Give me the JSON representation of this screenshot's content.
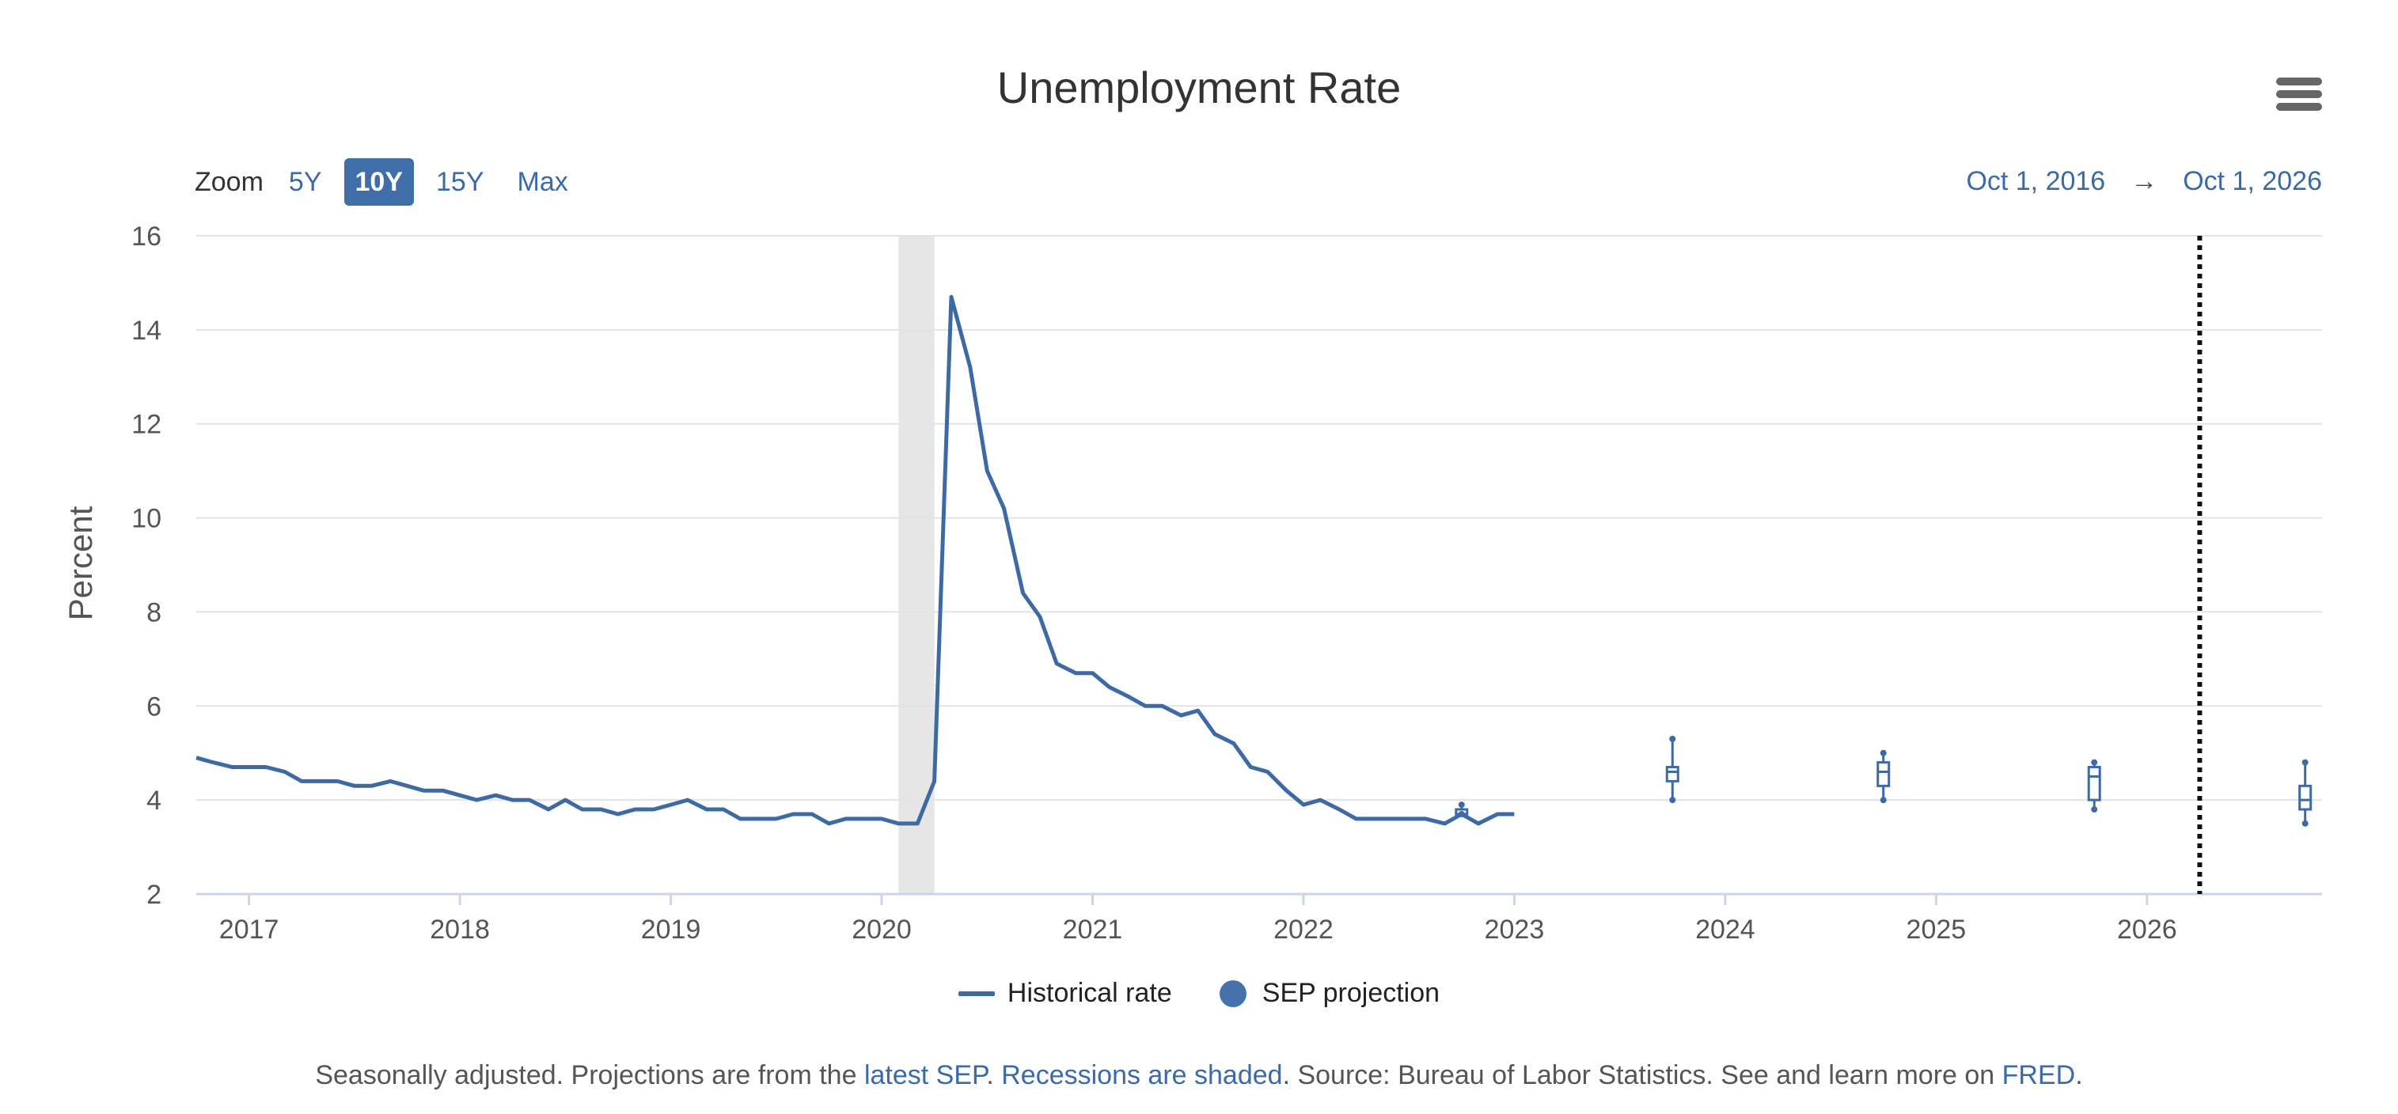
{
  "title": "Unemployment Rate",
  "zoom": {
    "label": "Zoom",
    "options": [
      "5Y",
      "10Y",
      "15Y",
      "Max"
    ],
    "active": "10Y"
  },
  "range": {
    "from": "Oct 1, 2016",
    "arrow": "→",
    "to": "Oct 1, 2026"
  },
  "legend": {
    "historical": "Historical rate",
    "projection": "SEP projection"
  },
  "footnote": {
    "part1": "Seasonally adjusted. Projections are from the ",
    "link1": "latest SEP",
    "part2": ". ",
    "link2": "Recessions are shaded",
    "part3": ". Source: Bureau of Labor Statistics. See and learn more on ",
    "link3": "FRED",
    "part4": "."
  },
  "colors": {
    "line": "#3d6aa4",
    "recession": "#e6e6e6",
    "grid": "#e3e3e3",
    "axis": "#c9d6e8"
  },
  "chart_data": {
    "type": "line",
    "title": "Unemployment Rate",
    "ylabel": "Percent",
    "xlabel": "",
    "ylim": [
      2,
      16
    ],
    "xlim": [
      2016.75,
      2026.83
    ],
    "yticks": [
      2,
      4,
      6,
      8,
      10,
      12,
      14,
      16
    ],
    "xticks": [
      2017,
      2018,
      2019,
      2020,
      2021,
      2022,
      2023,
      2024,
      2025,
      2026
    ],
    "grid": true,
    "legend_position": "bottom-center",
    "recessions": [
      {
        "start": 2020.08,
        "end": 2020.25
      }
    ],
    "reference_line_x": 2026.25,
    "series": [
      {
        "name": "Historical rate",
        "points": [
          [
            2016.75,
            4.9
          ],
          [
            2016.83,
            4.8
          ],
          [
            2016.92,
            4.7
          ],
          [
            2017.0,
            4.7
          ],
          [
            2017.08,
            4.7
          ],
          [
            2017.17,
            4.6
          ],
          [
            2017.25,
            4.4
          ],
          [
            2017.33,
            4.4
          ],
          [
            2017.42,
            4.4
          ],
          [
            2017.5,
            4.3
          ],
          [
            2017.58,
            4.3
          ],
          [
            2017.67,
            4.4
          ],
          [
            2017.75,
            4.3
          ],
          [
            2017.83,
            4.2
          ],
          [
            2017.92,
            4.2
          ],
          [
            2018.0,
            4.1
          ],
          [
            2018.08,
            4.0
          ],
          [
            2018.17,
            4.1
          ],
          [
            2018.25,
            4.0
          ],
          [
            2018.33,
            4.0
          ],
          [
            2018.42,
            3.8
          ],
          [
            2018.5,
            4.0
          ],
          [
            2018.58,
            3.8
          ],
          [
            2018.67,
            3.8
          ],
          [
            2018.75,
            3.7
          ],
          [
            2018.83,
            3.8
          ],
          [
            2018.92,
            3.8
          ],
          [
            2019.0,
            3.9
          ],
          [
            2019.08,
            4.0
          ],
          [
            2019.17,
            3.8
          ],
          [
            2019.25,
            3.8
          ],
          [
            2019.33,
            3.6
          ],
          [
            2019.42,
            3.6
          ],
          [
            2019.5,
            3.6
          ],
          [
            2019.58,
            3.7
          ],
          [
            2019.67,
            3.7
          ],
          [
            2019.75,
            3.5
          ],
          [
            2019.83,
            3.6
          ],
          [
            2019.92,
            3.6
          ],
          [
            2020.0,
            3.6
          ],
          [
            2020.08,
            3.5
          ],
          [
            2020.17,
            3.5
          ],
          [
            2020.25,
            4.4
          ],
          [
            2020.33,
            14.7
          ],
          [
            2020.42,
            13.2
          ],
          [
            2020.5,
            11.0
          ],
          [
            2020.58,
            10.2
          ],
          [
            2020.67,
            8.4
          ],
          [
            2020.75,
            7.9
          ],
          [
            2020.83,
            6.9
          ],
          [
            2020.92,
            6.7
          ],
          [
            2021.0,
            6.7
          ],
          [
            2021.08,
            6.4
          ],
          [
            2021.17,
            6.2
          ],
          [
            2021.25,
            6.0
          ],
          [
            2021.33,
            6.0
          ],
          [
            2021.42,
            5.8
          ],
          [
            2021.5,
            5.9
          ],
          [
            2021.58,
            5.4
          ],
          [
            2021.67,
            5.2
          ],
          [
            2021.75,
            4.7
          ],
          [
            2021.83,
            4.6
          ],
          [
            2021.92,
            4.2
          ],
          [
            2022.0,
            3.9
          ],
          [
            2022.08,
            4.0
          ],
          [
            2022.17,
            3.8
          ],
          [
            2022.25,
            3.6
          ],
          [
            2022.33,
            3.6
          ],
          [
            2022.42,
            3.6
          ],
          [
            2022.5,
            3.6
          ],
          [
            2022.58,
            3.6
          ],
          [
            2022.67,
            3.5
          ],
          [
            2022.75,
            3.7
          ],
          [
            2022.83,
            3.5
          ],
          [
            2022.92,
            3.7
          ],
          [
            2023.0,
            3.7
          ]
        ]
      },
      {
        "name": "SEP projection",
        "type": "boxplot",
        "boxes": [
          {
            "x": 2022.75,
            "low": 3.7,
            "q1": 3.7,
            "median": 3.7,
            "q3": 3.8,
            "high": 3.9
          },
          {
            "x": 2023.75,
            "low": 4.0,
            "q1": 4.4,
            "median": 4.6,
            "q3": 4.7,
            "high": 5.3
          },
          {
            "x": 2024.75,
            "low": 4.0,
            "q1": 4.3,
            "median": 4.6,
            "q3": 4.8,
            "high": 5.0
          },
          {
            "x": 2025.75,
            "low": 3.8,
            "q1": 4.0,
            "median": 4.5,
            "q3": 4.7,
            "high": 4.8
          },
          {
            "x": 2026.75,
            "low": 3.5,
            "q1": 3.8,
            "median": 4.0,
            "q3": 4.3,
            "high": 4.8
          }
        ]
      }
    ]
  }
}
